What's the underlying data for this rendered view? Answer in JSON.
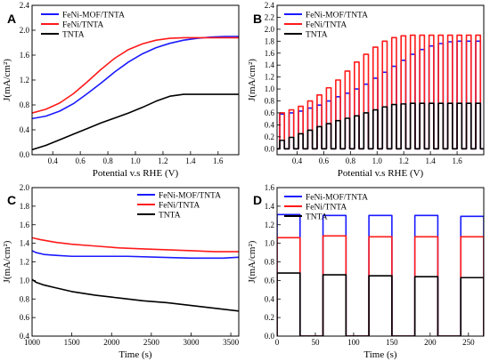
{
  "chart_data": [
    {
      "id": "A",
      "type": "line",
      "panel_label": "A",
      "xlabel": "Potential v.s RHE (V)",
      "ylabel": "J(mA/cm²)",
      "xlim": [
        0.25,
        1.75
      ],
      "ylim": [
        0.0,
        2.4
      ],
      "xticks": [
        0.4,
        0.6,
        0.8,
        1.0,
        1.2,
        1.4,
        1.6
      ],
      "yticks": [
        0.0,
        0.4,
        0.8,
        1.2,
        1.6,
        2.0,
        2.4
      ],
      "xtick_labels": [
        "0.4",
        "0.6",
        "0.8",
        "1.0",
        "1.2",
        "1.4",
        "1.6"
      ],
      "ytick_labels": [
        "0.0",
        "0.4",
        "0.8",
        "1.2",
        "1.6",
        "2.0",
        "2.4"
      ],
      "legend_position": "top-left",
      "series": [
        {
          "name": "FeNi-MOF/TNTA",
          "color": "#1a1aff",
          "x": [
            0.25,
            0.35,
            0.45,
            0.55,
            0.65,
            0.75,
            0.85,
            0.95,
            1.05,
            1.15,
            1.25,
            1.35,
            1.45,
            1.55,
            1.65,
            1.75
          ],
          "y": [
            0.58,
            0.62,
            0.7,
            0.82,
            0.98,
            1.15,
            1.33,
            1.49,
            1.62,
            1.72,
            1.79,
            1.84,
            1.87,
            1.89,
            1.9,
            1.9
          ]
        },
        {
          "name": "FeNi/TNTA",
          "color": "#ff1a1a",
          "x": [
            0.25,
            0.35,
            0.45,
            0.55,
            0.65,
            0.75,
            0.85,
            0.95,
            1.05,
            1.15,
            1.25,
            1.35,
            1.45,
            1.55,
            1.65,
            1.75
          ],
          "y": [
            0.67,
            0.73,
            0.83,
            0.98,
            1.17,
            1.37,
            1.55,
            1.69,
            1.78,
            1.84,
            1.87,
            1.88,
            1.88,
            1.88,
            1.88,
            1.88
          ]
        },
        {
          "name": "TNTA",
          "color": "#000000",
          "x": [
            0.25,
            0.35,
            0.45,
            0.55,
            0.65,
            0.75,
            0.85,
            0.95,
            1.05,
            1.15,
            1.25,
            1.35,
            1.45,
            1.55,
            1.65,
            1.75
          ],
          "y": [
            0.08,
            0.15,
            0.24,
            0.33,
            0.42,
            0.51,
            0.59,
            0.67,
            0.76,
            0.86,
            0.94,
            0.97,
            0.97,
            0.97,
            0.97,
            0.97
          ]
        }
      ]
    },
    {
      "id": "B",
      "type": "line",
      "panel_label": "B",
      "xlabel": "Potential v.s RHE (V)",
      "ylabel": "J(mA/cm²)",
      "xlim": [
        0.25,
        1.8
      ],
      "ylim": [
        -0.1,
        2.4
      ],
      "xticks": [
        0.4,
        0.6,
        0.8,
        1.0,
        1.2,
        1.4,
        1.6
      ],
      "yticks": [
        0.0,
        0.2,
        0.4,
        0.6,
        0.8,
        1.0,
        1.2,
        1.4,
        1.6,
        1.8,
        2.0,
        2.2,
        2.4
      ],
      "xtick_labels": [
        "0.4",
        "0.6",
        "0.8",
        "1.0",
        "1.2",
        "1.4",
        "1.6"
      ],
      "ytick_labels": [
        "0.0",
        "0.2",
        "0.4",
        "0.6",
        "0.8",
        "1.0",
        "1.2",
        "1.4",
        "1.6",
        "1.8",
        "2.0",
        "2.2",
        "2.4"
      ],
      "legend_position": "top-left",
      "chopped": true,
      "chop_on_start": [
        0.27,
        0.34,
        0.41,
        0.48,
        0.55,
        0.62,
        0.69,
        0.76,
        0.83,
        0.9,
        0.97,
        1.04,
        1.11,
        1.18,
        1.25,
        1.32,
        1.39,
        1.46,
        1.53,
        1.6,
        1.67,
        1.74
      ],
      "chop_width": 0.035,
      "series": [
        {
          "name": "FeNi-MOF/TNTA",
          "color": "#1a1aff",
          "on_values": [
            0.58,
            0.6,
            0.63,
            0.68,
            0.73,
            0.8,
            0.87,
            0.93,
            1.0,
            1.08,
            1.18,
            1.28,
            1.38,
            1.48,
            1.58,
            1.66,
            1.72,
            1.76,
            1.79,
            1.8,
            1.8,
            1.8
          ]
        },
        {
          "name": "FeNi/TNTA",
          "color": "#ff1a1a",
          "on_values": [
            0.6,
            0.65,
            0.71,
            0.8,
            0.9,
            1.02,
            1.15,
            1.3,
            1.45,
            1.58,
            1.7,
            1.8,
            1.86,
            1.89,
            1.9,
            1.9,
            1.9,
            1.9,
            1.9,
            1.9,
            1.9,
            1.9
          ]
        },
        {
          "name": "TNTA",
          "color": "#000000",
          "on_values": [
            0.14,
            0.19,
            0.25,
            0.31,
            0.37,
            0.42,
            0.47,
            0.51,
            0.55,
            0.6,
            0.65,
            0.7,
            0.74,
            0.75,
            0.76,
            0.76,
            0.76,
            0.76,
            0.76,
            0.76,
            0.76,
            0.76
          ]
        }
      ]
    },
    {
      "id": "C",
      "type": "line",
      "panel_label": "C",
      "xlabel": "Time (s)",
      "ylabel": "J(mA/cm²)",
      "xlim": [
        1000,
        3600
      ],
      "ylim": [
        0.4,
        2.0
      ],
      "xticks": [
        1000,
        1500,
        2000,
        2500,
        3000,
        3500
      ],
      "yticks": [
        0.4,
        0.6,
        0.8,
        1.0,
        1.2,
        1.4,
        1.6,
        1.8,
        2.0
      ],
      "xtick_labels": [
        "1000",
        "1500",
        "2000",
        "2500",
        "3000",
        "3500"
      ],
      "ytick_labels": [
        "0.4",
        "0.6",
        "0.8",
        "1.0",
        "1.2",
        "1.4",
        "1.6",
        "1.8",
        "2.0"
      ],
      "legend_position": "top-right",
      "series": [
        {
          "name": "FeNi-MOF/TNTA",
          "color": "#1a1aff",
          "x": [
            1000,
            1050,
            1150,
            1300,
            1500,
            1800,
            2200,
            2600,
            3000,
            3400,
            3600
          ],
          "y": [
            1.32,
            1.3,
            1.28,
            1.27,
            1.26,
            1.26,
            1.26,
            1.25,
            1.24,
            1.24,
            1.25
          ]
        },
        {
          "name": "FeNi/TNTA",
          "color": "#ff1a1a",
          "x": [
            1000,
            1100,
            1300,
            1500,
            1800,
            2100,
            2400,
            2700,
            3000,
            3300,
            3600
          ],
          "y": [
            1.46,
            1.44,
            1.41,
            1.39,
            1.37,
            1.35,
            1.34,
            1.33,
            1.32,
            1.31,
            1.31
          ]
        },
        {
          "name": "TNTA",
          "color": "#000000",
          "x": [
            1000,
            1050,
            1150,
            1300,
            1500,
            1800,
            2100,
            2400,
            2700,
            3000,
            3300,
            3600
          ],
          "y": [
            1.01,
            0.98,
            0.95,
            0.92,
            0.88,
            0.84,
            0.81,
            0.78,
            0.76,
            0.73,
            0.7,
            0.67
          ]
        }
      ]
    },
    {
      "id": "D",
      "type": "line",
      "panel_label": "D",
      "xlabel": "Time (s)",
      "ylabel": "J(mA/cm²)",
      "xlim": [
        0,
        270
      ],
      "ylim": [
        0.0,
        1.6
      ],
      "xticks": [
        0,
        50,
        100,
        150,
        200,
        250
      ],
      "yticks": [
        0.0,
        0.2,
        0.4,
        0.6,
        0.8,
        1.0,
        1.2,
        1.4,
        1.6
      ],
      "xtick_labels": [
        "0",
        "50",
        "100",
        "150",
        "200",
        "250"
      ],
      "ytick_labels": [
        "0.0",
        "0.2",
        "0.4",
        "0.6",
        "0.8",
        "1.0",
        "1.2",
        "1.4",
        "1.6"
      ],
      "legend_position": "top-left",
      "chopped": true,
      "chop_on_start": [
        0,
        60,
        120,
        180,
        240
      ],
      "chop_width": 30,
      "series": [
        {
          "name": "FeNi-MOF/TNTA",
          "color": "#1a1aff",
          "on_values": [
            1.31,
            1.3,
            1.3,
            1.3,
            1.29
          ]
        },
        {
          "name": "FeNi/TNTA",
          "color": "#ff1a1a",
          "on_values": [
            1.06,
            1.08,
            1.07,
            1.07,
            1.07
          ]
        },
        {
          "name": "TNTA",
          "color": "#000000",
          "on_values": [
            0.68,
            0.66,
            0.65,
            0.64,
            0.63
          ]
        }
      ]
    }
  ]
}
